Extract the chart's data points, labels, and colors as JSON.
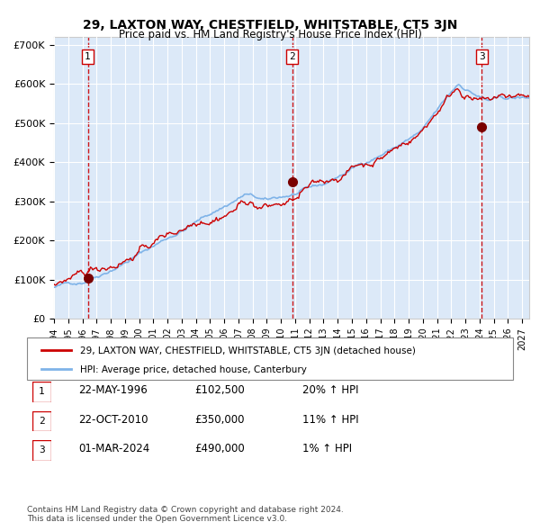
{
  "title": "29, LAXTON WAY, CHESTFIELD, WHITSTABLE, CT5 3JN",
  "subtitle": "Price paid vs. HM Land Registry's House Price Index (HPI)",
  "xlabel": "",
  "ylabel": "",
  "ylim": [
    0,
    720000
  ],
  "xlim_start": 1994.0,
  "xlim_end": 2027.5,
  "yticks": [
    0,
    100000,
    200000,
    300000,
    400000,
    500000,
    600000,
    700000
  ],
  "ytick_labels": [
    "£0",
    "£100K",
    "£200K",
    "£300K",
    "£400K",
    "£500K",
    "£600K",
    "£700K"
  ],
  "xtick_years": [
    1994,
    1995,
    1996,
    1997,
    1998,
    1999,
    2000,
    2001,
    2002,
    2003,
    2004,
    2005,
    2006,
    2007,
    2008,
    2009,
    2010,
    2011,
    2012,
    2013,
    2014,
    2015,
    2016,
    2017,
    2018,
    2019,
    2020,
    2021,
    2022,
    2023,
    2024,
    2025,
    2026,
    2027
  ],
  "background_color": "#dce9f8",
  "plot_bg_color": "#dce9f8",
  "grid_color": "#ffffff",
  "hpi_line_color": "#7fb3e8",
  "price_line_color": "#cc0000",
  "purchase_marker_color": "#7a0000",
  "dashed_line_color": "#cc0000",
  "sale1": {
    "date_label": "22-MAY-1996",
    "year": 1996.38,
    "price": 102500,
    "label": "1",
    "hpi_pct": "20%"
  },
  "sale2": {
    "date_label": "22-OCT-2010",
    "year": 2010.8,
    "price": 350000,
    "label": "2",
    "hpi_pct": "11%"
  },
  "sale3": {
    "date_label": "01-MAR-2024",
    "year": 2024.16,
    "price": 490000,
    "label": "3",
    "hpi_pct": "1%"
  },
  "legend1": "29, LAXTON WAY, CHESTFIELD, WHITSTABLE, CT5 3JN (detached house)",
  "legend2": "HPI: Average price, detached house, Canterbury",
  "footnote": "Contains HM Land Registry data © Crown copyright and database right 2024.\nThis data is licensed under the Open Government Licence v3.0.",
  "table_rows": [
    {
      "num": "1",
      "date": "22-MAY-1996",
      "price": "£102,500",
      "hpi": "20% ↑ HPI"
    },
    {
      "num": "2",
      "date": "22-OCT-2010",
      "price": "£350,000",
      "hpi": "11% ↑ HPI"
    },
    {
      "num": "3",
      "date": "01-MAR-2024",
      "price": "£490,000",
      "hpi": "1% ↑ HPI"
    }
  ]
}
